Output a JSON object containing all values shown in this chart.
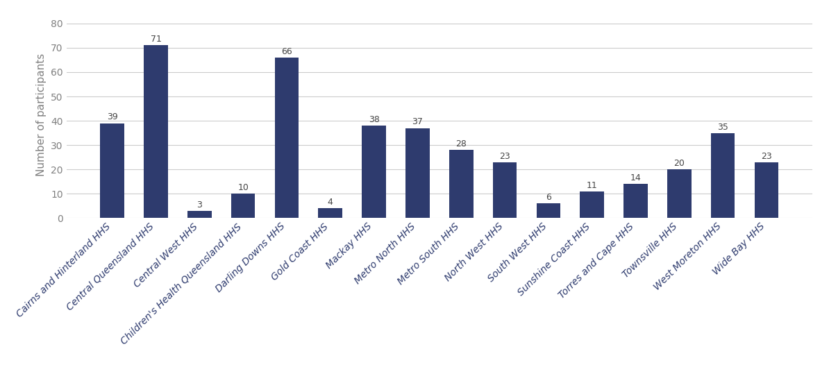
{
  "categories": [
    "Cairns and Hinterland HHS",
    "Central Queensland HHS",
    "Central West HHS",
    "Children's Health Queensland HHS",
    "Darling Downs HHS",
    "Gold Coast HHS",
    "Mackay HHS",
    "Metro North HHS",
    "Metro South HHS",
    "North West HHS",
    "South West HHS",
    "Sunshine Coast HHS",
    "Torres and Cape HHS",
    "Townsville HHS",
    "West Moreton HHS",
    "Wide Bay HHS"
  ],
  "values": [
    39,
    71,
    3,
    10,
    66,
    4,
    38,
    37,
    28,
    23,
    6,
    11,
    14,
    20,
    35,
    23
  ],
  "bar_color": "#2E3B6E",
  "ylabel": "Number of participants",
  "ylim": [
    0,
    85
  ],
  "yticks": [
    0,
    10,
    20,
    30,
    40,
    50,
    60,
    70,
    80
  ],
  "label_fontsize": 9,
  "tick_label_fontsize": 10,
  "ylabel_fontsize": 11,
  "background_color": "#ffffff",
  "grid_color": "#cccccc",
  "ylabel_color": "#808080",
  "ytick_color": "#808080",
  "xtick_color": "#2E3B6E"
}
